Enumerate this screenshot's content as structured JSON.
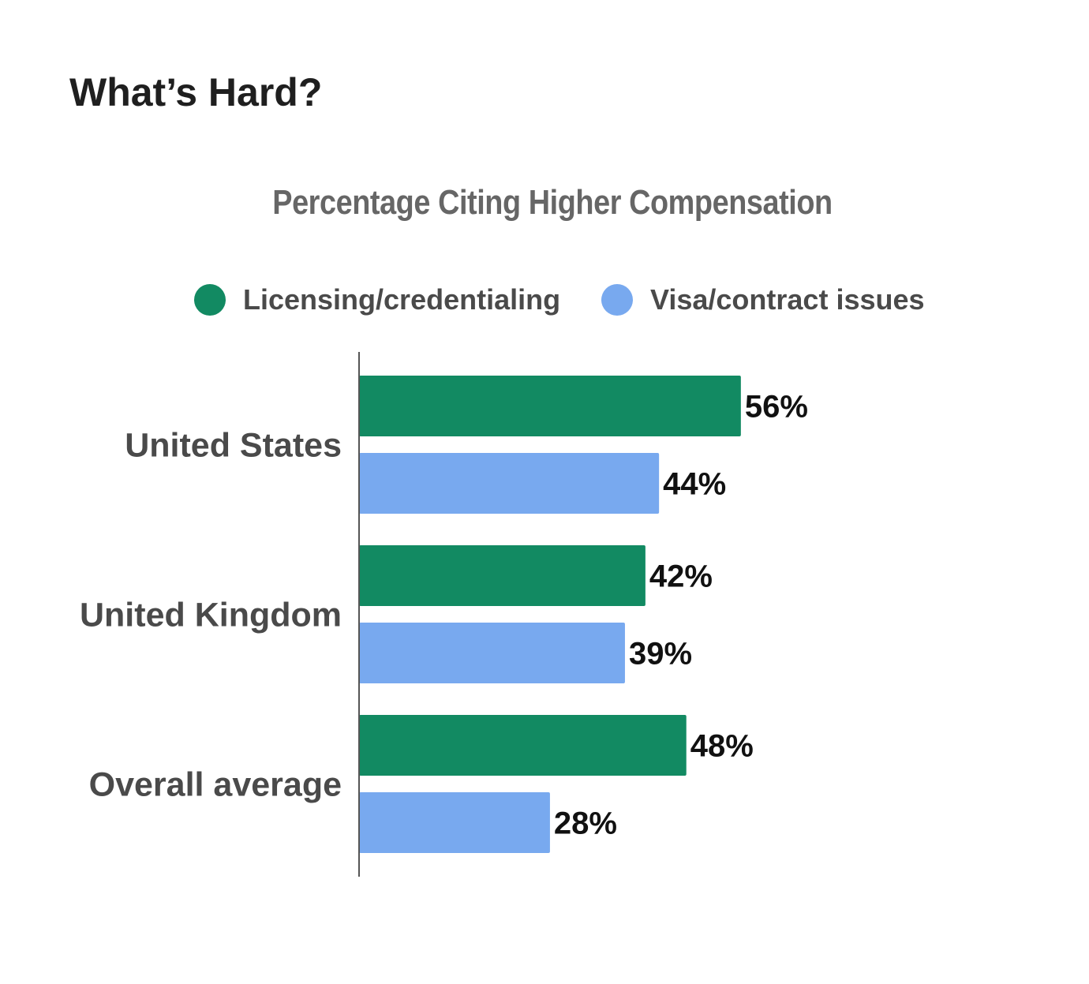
{
  "page": {
    "title": "What’s Hard?"
  },
  "chart_data": {
    "type": "bar",
    "orientation": "horizontal",
    "title": "Percentage Citing Higher Compensation",
    "categories": [
      "United States",
      "United Kingdom",
      "Overall average"
    ],
    "series": [
      {
        "name": "Licensing/credentialing",
        "color": "#128a62",
        "values": [
          56,
          42,
          48
        ],
        "labels": [
          "56%",
          "42%",
          "48%"
        ]
      },
      {
        "name": "Visa/contract issues",
        "color": "#78a9ef",
        "values": [
          44,
          39,
          28
        ],
        "labels": [
          "44%",
          "39%",
          "28%"
        ]
      }
    ],
    "value_unit": "%",
    "xlim": [
      0,
      100
    ],
    "grid": false,
    "legend_position": "top-center",
    "xlabel": "",
    "ylabel": ""
  }
}
